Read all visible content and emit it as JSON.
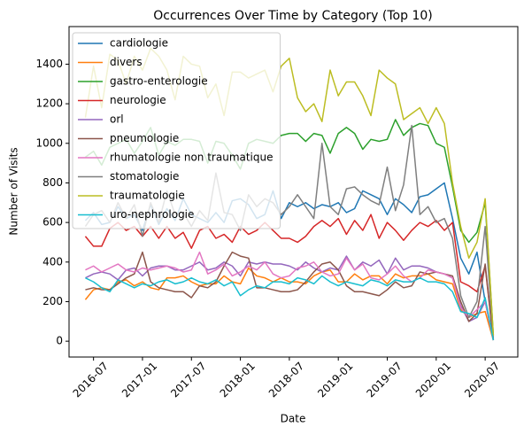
{
  "chart_data": {
    "type": "line",
    "title": "Occurrences Over Time by Category (Top 10)",
    "x_label": "Date",
    "y_label": "Number of Visits",
    "x": [
      "2016-06",
      "2016-07",
      "2016-08",
      "2016-09",
      "2016-10",
      "2016-11",
      "2016-12",
      "2017-01",
      "2017-02",
      "2017-03",
      "2017-04",
      "2017-05",
      "2017-06",
      "2017-07",
      "2017-08",
      "2017-09",
      "2017-10",
      "2017-11",
      "2017-12",
      "2018-01",
      "2018-02",
      "2018-03",
      "2018-04",
      "2018-05",
      "2018-06",
      "2018-07",
      "2018-08",
      "2018-09",
      "2018-10",
      "2018-11",
      "2018-12",
      "2019-01",
      "2019-02",
      "2019-03",
      "2019-04",
      "2019-05",
      "2019-06",
      "2019-07",
      "2019-08",
      "2019-09",
      "2019-10",
      "2019-11",
      "2019-12",
      "2020-01",
      "2020-02",
      "2020-03",
      "2020-04",
      "2020-05",
      "2020-06",
      "2020-07",
      "2020-08"
    ],
    "xlim": [
      "2016-04",
      "2020-11"
    ],
    "xticks": [
      "2016-07",
      "2017-01",
      "2017-07",
      "2018-01",
      "2018-07",
      "2019-01",
      "2019-07",
      "2020-01",
      "2020-07"
    ],
    "ylim": [
      -80,
      1590
    ],
    "yticks": [
      0,
      200,
      400,
      600,
      800,
      1000,
      1200,
      1400
    ],
    "legend": "upper left",
    "series": [
      {
        "name": "cardiologie",
        "color": "#1f77b4",
        "values": [
          610,
          650,
          590,
          600,
          680,
          620,
          640,
          560,
          690,
          590,
          670,
          610,
          720,
          640,
          620,
          600,
          650,
          600,
          710,
          720,
          690,
          620,
          640,
          760,
          620,
          700,
          680,
          700,
          670,
          690,
          680,
          700,
          650,
          670,
          760,
          740,
          720,
          640,
          720,
          690,
          650,
          730,
          740,
          770,
          800,
          620,
          420,
          340,
          450,
          200,
          5
        ]
      },
      {
        "name": "divers",
        "color": "#ff7f0e",
        "values": [
          210,
          260,
          270,
          260,
          300,
          310,
          280,
          300,
          270,
          260,
          320,
          320,
          330,
          300,
          280,
          290,
          290,
          330,
          300,
          290,
          370,
          330,
          320,
          300,
          320,
          300,
          300,
          290,
          330,
          350,
          360,
          300,
          300,
          340,
          310,
          330,
          330,
          290,
          340,
          320,
          330,
          330,
          340,
          310,
          300,
          290,
          160,
          120,
          140,
          150,
          5
        ]
      },
      {
        "name": "gastro-enterologie",
        "color": "#2ca02c",
        "values": [
          930,
          960,
          890,
          980,
          1000,
          1020,
          950,
          1010,
          1080,
          940,
          1010,
          990,
          1020,
          1020,
          1010,
          900,
          1010,
          1000,
          940,
          870,
          1000,
          1020,
          1010,
          1000,
          1040,
          1050,
          1050,
          1010,
          1050,
          1040,
          950,
          1050,
          1080,
          1050,
          970,
          1020,
          1010,
          1020,
          1120,
          1040,
          1080,
          1100,
          1090,
          1000,
          980,
          780,
          560,
          500,
          550,
          700,
          30
        ]
      },
      {
        "name": "neurologie",
        "color": "#d62728",
        "values": [
          530,
          480,
          480,
          570,
          600,
          560,
          580,
          530,
          580,
          520,
          580,
          520,
          550,
          470,
          560,
          580,
          520,
          540,
          500,
          580,
          540,
          560,
          600,
          560,
          520,
          520,
          500,
          530,
          580,
          610,
          580,
          620,
          540,
          610,
          560,
          640,
          520,
          600,
          560,
          510,
          560,
          600,
          580,
          610,
          560,
          600,
          300,
          280,
          250,
          380,
          5
        ]
      },
      {
        "name": "orl",
        "color": "#9467bd",
        "values": [
          320,
          340,
          350,
          340,
          310,
          360,
          370,
          330,
          370,
          380,
          380,
          360,
          360,
          380,
          400,
          360,
          370,
          400,
          380,
          330,
          400,
          390,
          400,
          390,
          390,
          380,
          360,
          400,
          370,
          350,
          370,
          360,
          430,
          360,
          400,
          380,
          410,
          340,
          420,
          360,
          380,
          380,
          370,
          350,
          340,
          320,
          180,
          100,
          120,
          200,
          10
        ]
      },
      {
        "name": "pneumologie",
        "color": "#8c564b",
        "values": [
          260,
          270,
          260,
          260,
          290,
          320,
          340,
          450,
          300,
          270,
          260,
          250,
          250,
          220,
          280,
          270,
          300,
          380,
          450,
          430,
          420,
          270,
          270,
          260,
          250,
          250,
          260,
          300,
          350,
          390,
          400,
          360,
          280,
          250,
          250,
          240,
          230,
          260,
          300,
          270,
          280,
          350,
          340,
          350,
          340,
          330,
          200,
          100,
          140,
          390,
          5
        ]
      },
      {
        "name": "rhumatologie non traumatique",
        "color": "#e377c2",
        "values": [
          360,
          380,
          350,
          370,
          390,
          360,
          350,
          370,
          360,
          370,
          380,
          370,
          350,
          360,
          450,
          340,
          360,
          390,
          330,
          350,
          380,
          360,
          400,
          340,
          320,
          330,
          370,
          380,
          400,
          350,
          330,
          340,
          420,
          360,
          390,
          320,
          310,
          340,
          380,
          330,
          300,
          320,
          360,
          350,
          340,
          320,
          170,
          120,
          160,
          200,
          5
        ]
      },
      {
        "name": "stomatologie",
        "color": "#7f7f7f",
        "values": [
          580,
          640,
          660,
          600,
          700,
          620,
          690,
          530,
          700,
          600,
          760,
          640,
          650,
          580,
          660,
          610,
          850,
          650,
          640,
          560,
          740,
          680,
          720,
          700,
          640,
          680,
          740,
          680,
          620,
          1000,
          680,
          640,
          770,
          780,
          740,
          710,
          690,
          880,
          660,
          790,
          1090,
          640,
          680,
          600,
          620,
          520,
          230,
          120,
          200,
          580,
          10
        ]
      },
      {
        "name": "traumatologie",
        "color": "#bcbd22",
        "values": [
          1130,
          1390,
          1180,
          1450,
          1420,
          1300,
          1440,
          1370,
          1480,
          1440,
          1370,
          1220,
          1440,
          1400,
          1390,
          1230,
          1300,
          1140,
          1360,
          1360,
          1330,
          1350,
          1370,
          1260,
          1390,
          1430,
          1230,
          1160,
          1200,
          1110,
          1370,
          1240,
          1310,
          1310,
          1240,
          1140,
          1370,
          1330,
          1300,
          1120,
          1150,
          1180,
          1100,
          1180,
          1100,
          800,
          580,
          420,
          500,
          720,
          30
        ]
      },
      {
        "name": "uro-nephrologie",
        "color": "#17becf",
        "values": [
          320,
          300,
          270,
          250,
          310,
          290,
          270,
          290,
          280,
          300,
          310,
          290,
          300,
          320,
          300,
          290,
          310,
          280,
          300,
          230,
          260,
          280,
          270,
          300,
          300,
          290,
          320,
          310,
          290,
          330,
          300,
          280,
          300,
          290,
          280,
          310,
          300,
          280,
          310,
          300,
          300,
          320,
          300,
          300,
          290,
          250,
          150,
          140,
          120,
          220,
          5
        ]
      }
    ]
  }
}
